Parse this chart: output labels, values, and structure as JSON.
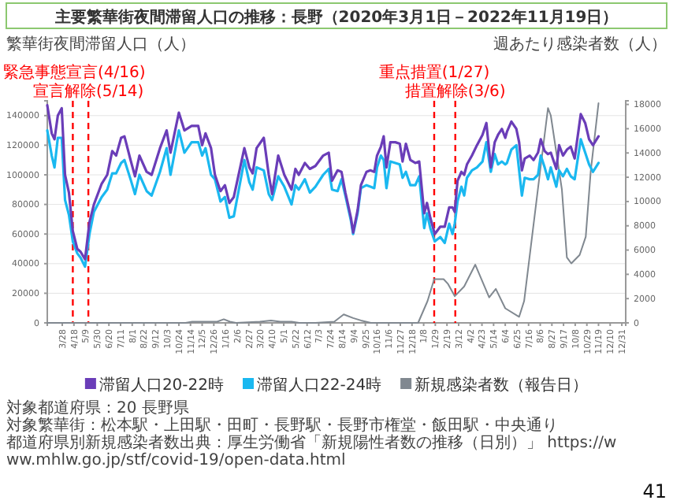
{
  "chart_data": {
    "type": "line",
    "title": "主要繁華街夜間滞留人口の推移：長野（2020年3月1日－2022年11月19日）",
    "ylabel": "繁華街夜間滞留人口（人）",
    "y2label": "週あたり感染者数（人）",
    "x": [
      "2020-03-01",
      "2020-03-09",
      "2020-03-14",
      "2020-03-20",
      "2020-03-27",
      "2020-04-02",
      "2020-04-09",
      "2020-04-16",
      "2020-04-24",
      "2020-04-30",
      "2020-05-08",
      "2020-05-16",
      "2020-05-24",
      "2020-06-07",
      "2020-06-17",
      "2020-06-26",
      "2020-07-03",
      "2020-07-12",
      "2020-07-18",
      "2020-07-29",
      "2020-08-06",
      "2020-08-14",
      "2020-08-27",
      "2020-09-05",
      "2020-09-20",
      "2020-10-02",
      "2020-10-09",
      "2020-10-24",
      "2020-11-03",
      "2020-11-16",
      "2020-11-28",
      "2020-12-05",
      "2020-12-11",
      "2020-12-21",
      "2020-12-28",
      "2021-01-07",
      "2021-01-15",
      "2021-01-23",
      "2021-01-31",
      "2021-02-19",
      "2021-02-28",
      "2021-03-06",
      "2021-03-13",
      "2021-03-26",
      "2021-04-04",
      "2021-04-10",
      "2021-04-21",
      "2021-05-02",
      "2021-05-15",
      "2021-05-22",
      "2021-05-28",
      "2021-06-08",
      "2021-06-17",
      "2021-06-27",
      "2021-07-11",
      "2021-07-21",
      "2021-07-27",
      "2021-08-06",
      "2021-08-13",
      "2021-08-20",
      "2021-08-30",
      "2021-09-03",
      "2021-09-11",
      "2021-09-17",
      "2021-09-27",
      "2021-10-04",
      "2021-10-11",
      "2021-10-16",
      "2021-10-23",
      "2021-10-28",
      "2021-11-02",
      "2021-11-09",
      "2021-11-18",
      "2021-11-26",
      "2021-12-01",
      "2021-12-07",
      "2021-12-15",
      "2021-12-24",
      "2021-12-31",
      "2022-01-09",
      "2022-01-14",
      "2022-01-20",
      "2022-01-28",
      "2022-02-07",
      "2022-02-15",
      "2022-02-23",
      "2022-03-01",
      "2022-03-05",
      "2022-03-10",
      "2022-03-17",
      "2022-03-22",
      "2022-03-27",
      "2022-04-05",
      "2022-04-14",
      "2022-04-24",
      "2022-05-01",
      "2022-05-09",
      "2022-05-16",
      "2022-05-22",
      "2022-05-29",
      "2022-06-04",
      "2022-06-07",
      "2022-06-15",
      "2022-06-24",
      "2022-06-29",
      "2022-07-04",
      "2022-07-09",
      "2022-07-18",
      "2022-07-25",
      "2022-08-02",
      "2022-08-07",
      "2022-08-14",
      "2022-08-20",
      "2022-08-25",
      "2022-09-04",
      "2022-09-09",
      "2022-09-16",
      "2022-09-23",
      "2022-09-30",
      "2022-10-07",
      "2022-10-18",
      "2022-10-26",
      "2022-11-02",
      "2022-11-09",
      "2022-11-19"
    ],
    "series": [
      {
        "name": "滞留人口20-22時",
        "color": "#6a3db8",
        "values": [
          147000,
          128000,
          124000,
          140000,
          145000,
          100000,
          88000,
          62000,
          50000,
          48000,
          43000,
          68000,
          80000,
          94000,
          100000,
          116000,
          113000,
          125000,
          126000,
          110000,
          99000,
          113000,
          102000,
          100000,
          118000,
          130000,
          115000,
          142000,
          130000,
          133000,
          133000,
          120000,
          128000,
          118000,
          100000,
          89000,
          93000,
          81000,
          85000,
          118000,
          105000,
          101000,
          118000,
          125000,
          100000,
          87000,
          113000,
          100000,
          90000,
          104000,
          100000,
          108000,
          104000,
          106000,
          113000,
          115000,
          96000,
          103000,
          102000,
          88000,
          71000,
          61000,
          76000,
          93000,
          102000,
          103000,
          102000,
          113000,
          119000,
          126000,
          105000,
          122000,
          122000,
          121000,
          109000,
          121000,
          110000,
          108000,
          109000,
          74000,
          81000,
          71000,
          60000,
          65000,
          65000,
          78000,
          78000,
          75000,
          96000,
          102000,
          100000,
          107000,
          113000,
          120000,
          127000,
          135000,
          105000,
          122000,
          127000,
          131000,
          125000,
          129000,
          136000,
          131000,
          122000,
          103000,
          111000,
          113000,
          110000,
          115000,
          124000,
          116000,
          114000,
          115000,
          104000,
          120000,
          113000,
          117000,
          119000,
          111000,
          141000,
          135000,
          124000,
          120000,
          126000
        ]
      },
      {
        "name": "滞留人口22-24時",
        "color": "#1ab8f0",
        "values": [
          130000,
          113000,
          105000,
          125000,
          125000,
          83000,
          73000,
          55000,
          47000,
          44000,
          38000,
          60000,
          75000,
          85000,
          90000,
          101000,
          101000,
          108000,
          110000,
          97000,
          87000,
          100000,
          89000,
          86000,
          102000,
          118000,
          100000,
          130000,
          115000,
          122000,
          122000,
          113000,
          118000,
          100000,
          97000,
          82000,
          85000,
          71000,
          72000,
          110000,
          95000,
          90000,
          105000,
          103000,
          87000,
          83000,
          99000,
          92000,
          80000,
          93000,
          90000,
          97000,
          88000,
          92000,
          100000,
          104000,
          90000,
          89000,
          97000,
          86000,
          69000,
          60000,
          74000,
          91000,
          93000,
          92000,
          91000,
          105000,
          113000,
          110000,
          91000,
          109000,
          108000,
          107000,
          98000,
          102000,
          93000,
          93000,
          99000,
          64000,
          74000,
          64000,
          55000,
          58000,
          54000,
          67000,
          60000,
          67000,
          82000,
          92000,
          86000,
          98000,
          103000,
          105000,
          109000,
          122000,
          102000,
          114000,
          107000,
          109000,
          107000,
          108000,
          117000,
          120000,
          103000,
          86000,
          98000,
          97000,
          97000,
          100000,
          113000,
          105000,
          97000,
          105000,
          92000,
          103000,
          99000,
          104000,
          99000,
          97000,
          124000,
          115000,
          107000,
          102000,
          108000
        ]
      },
      {
        "name": "新規感染者数（報告日）",
        "color": "#808890",
        "axis": "y2",
        "x": [
          "2020-03-01",
          "2020-11-05",
          "2020-11-17",
          "2020-12-04",
          "2020-12-18",
          "2021-01-01",
          "2021-01-13",
          "2021-01-24",
          "2021-02-04",
          "2021-03-19",
          "2021-04-08",
          "2021-04-25",
          "2021-05-15",
          "2021-05-29",
          "2021-06-27",
          "2021-07-31",
          "2021-08-17",
          "2021-09-03",
          "2021-09-17",
          "2021-10-05",
          "2021-12-29",
          "2022-01-15",
          "2022-01-27",
          "2022-02-13",
          "2022-02-21",
          "2022-03-05",
          "2022-03-22",
          "2022-04-11",
          "2022-05-06",
          "2022-05-18",
          "2022-06-04",
          "2022-06-29",
          "2022-07-08",
          "2022-08-05",
          "2022-08-20",
          "2022-08-25",
          "2022-09-14",
          "2022-09-23",
          "2022-10-01",
          "2022-10-16",
          "2022-10-27",
          "2022-11-05",
          "2022-11-19"
        ],
        "values": [
          0,
          0,
          100,
          100,
          100,
          100,
          300,
          100,
          0,
          100,
          200,
          100,
          100,
          0,
          0,
          100,
          700,
          400,
          200,
          0,
          0,
          1800,
          3600,
          3600,
          3200,
          2200,
          3000,
          4800,
          2100,
          2800,
          1200,
          500,
          1800,
          12200,
          17700,
          17100,
          11000,
          5400,
          4900,
          5600,
          7100,
          12500,
          18100
        ]
      }
    ],
    "xlim": [
      "2020-03-01",
      "2023-01-07"
    ],
    "xticks": [
      {
        "value": "2020-03-28",
        "label": "3/28"
      },
      {
        "value": "2020-04-18",
        "label": "4/18"
      },
      {
        "value": "2020-05-09",
        "label": "5/9"
      },
      {
        "value": "2020-05-30",
        "label": "5/30"
      },
      {
        "value": "2020-06-20",
        "label": "6/20"
      },
      {
        "value": "2020-07-11",
        "label": "7/11"
      },
      {
        "value": "2020-08-01",
        "label": "8/1"
      },
      {
        "value": "2020-08-22",
        "label": "8/22"
      },
      {
        "value": "2020-09-12",
        "label": "9/12"
      },
      {
        "value": "2020-10-03",
        "label": "10/3"
      },
      {
        "value": "2020-10-24",
        "label": "10/24"
      },
      {
        "value": "2020-11-14",
        "label": "11/14"
      },
      {
        "value": "2020-12-05",
        "label": "12/5"
      },
      {
        "value": "2020-12-26",
        "label": "12/26"
      },
      {
        "value": "2021-01-16",
        "label": "1/16"
      },
      {
        "value": "2021-02-06",
        "label": "2/6"
      },
      {
        "value": "2021-02-27",
        "label": "2/27"
      },
      {
        "value": "2021-03-20",
        "label": "3/20"
      },
      {
        "value": "2021-04-10",
        "label": "4/10"
      },
      {
        "value": "2021-05-01",
        "label": "5/1"
      },
      {
        "value": "2021-05-22",
        "label": "5/22"
      },
      {
        "value": "2021-06-12",
        "label": "6/12"
      },
      {
        "value": "2021-07-03",
        "label": "7/3"
      },
      {
        "value": "2021-07-24",
        "label": "7/24"
      },
      {
        "value": "2021-08-14",
        "label": "8/14"
      },
      {
        "value": "2021-09-04",
        "label": "9/4"
      },
      {
        "value": "2021-09-25",
        "label": "9/25"
      },
      {
        "value": "2021-10-16",
        "label": "10/16"
      },
      {
        "value": "2021-11-06",
        "label": "11/6"
      },
      {
        "value": "2021-11-27",
        "label": "11/27"
      },
      {
        "value": "2021-12-18",
        "label": "12/18"
      },
      {
        "value": "2022-01-08",
        "label": "1/8"
      },
      {
        "value": "2022-01-29",
        "label": "1/29"
      },
      {
        "value": "2022-02-19",
        "label": "2/19"
      },
      {
        "value": "2022-03-12",
        "label": "3/12"
      },
      {
        "value": "2022-04-02",
        "label": "4/2"
      },
      {
        "value": "2022-04-23",
        "label": "4/23"
      },
      {
        "value": "2022-05-14",
        "label": "5/14"
      },
      {
        "value": "2022-06-04",
        "label": "6/4"
      },
      {
        "value": "2022-06-25",
        "label": "6/25"
      },
      {
        "value": "2022-07-16",
        "label": "7/16"
      },
      {
        "value": "2022-08-06",
        "label": "8/6"
      },
      {
        "value": "2022-08-27",
        "label": "8/27"
      },
      {
        "value": "2022-09-17",
        "label": "9/17"
      },
      {
        "value": "2022-10-08",
        "label": "10/8"
      },
      {
        "value": "2022-10-29",
        "label": "10/29"
      },
      {
        "value": "2022-11-19",
        "label": "11/19"
      },
      {
        "value": "2022-12-10",
        "label": "12/10"
      },
      {
        "value": "2022-12-31",
        "label": "12/31"
      }
    ],
    "ylim": [
      0,
      150000
    ],
    "yticks": [
      0,
      20000,
      40000,
      60000,
      80000,
      100000,
      120000,
      140000
    ],
    "y2lim": [
      0,
      18300
    ],
    "y2ticks": [
      0,
      2000,
      4000,
      6000,
      8000,
      10000,
      12000,
      14000,
      16000,
      18000
    ],
    "ref_lines": [
      {
        "axis": "x",
        "value": "2020-04-16",
        "label": "緊急事態宣言(4/16)",
        "color": "#ff0000",
        "line_style": "dashed"
      },
      {
        "axis": "x",
        "value": "2020-05-14",
        "label": "宣言解除(5/14)",
        "color": "#ff0000",
        "line_style": "dashed"
      },
      {
        "axis": "x",
        "value": "2022-01-27",
        "label": "重点措置(1/27)",
        "color": "#ff0000",
        "line_style": "dashed"
      },
      {
        "axis": "x",
        "value": "2022-03-06",
        "label": "措置解除(3/6)",
        "color": "#ff0000",
        "line_style": "dashed"
      }
    ],
    "annotations": [
      "対象都道府県：20 長野県",
      "対象繁華街：松本駅・上田駅・田町・長野駅・長野市権堂・飯田駅・中央通り",
      "都道府県別新規感染者数出典：厚生労働省「新規陽性者数の推移（日別）」 https://www.mhlw.go.jp/stf/covid-19/open-data.html",
      "41"
    ],
    "grid": "y",
    "legend": "bottom",
    "line_style": "solid"
  }
}
